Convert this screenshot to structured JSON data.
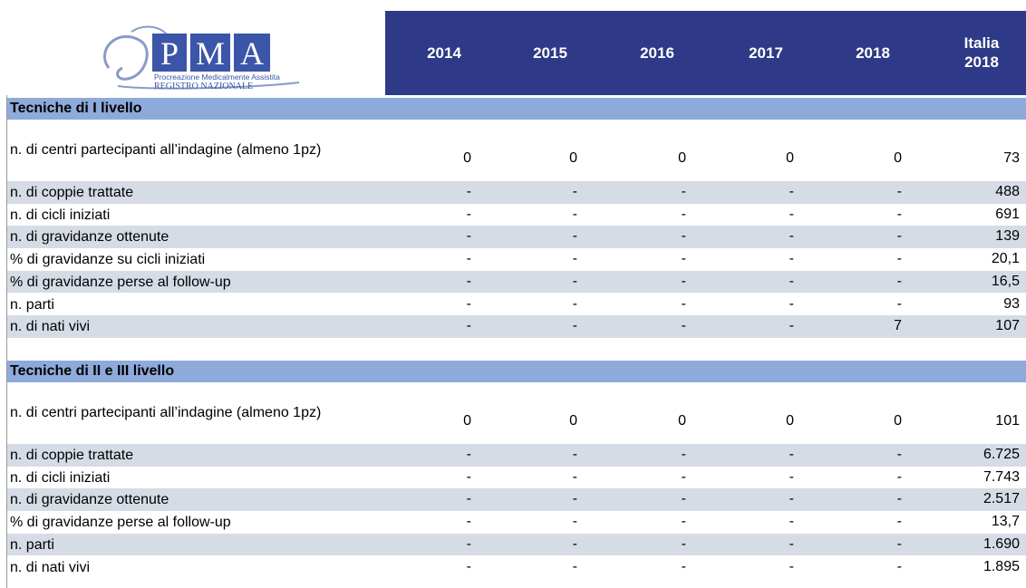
{
  "header": {
    "logo": {
      "title": [
        "P",
        "M",
        "A"
      ],
      "subtitle": "Procreazione Medicalmente Assistita",
      "registry": "REGISTRO NAZIONALE"
    },
    "columns": [
      "2014",
      "2015",
      "2016",
      "2017",
      "2018",
      "Italia 2018"
    ]
  },
  "sections": [
    {
      "title": "Tecniche di I livello",
      "rows": [
        {
          "label": "n. di centri partecipanti all’indagine (almeno 1pz)",
          "values": [
            "0",
            "0",
            "0",
            "0",
            "0",
            "73"
          ]
        },
        {
          "label": "n. di coppie trattate",
          "values": [
            "-",
            "-",
            "-",
            "-",
            "-",
            "488"
          ]
        },
        {
          "label": "n. di cicli iniziati",
          "values": [
            "-",
            "-",
            "-",
            "-",
            "-",
            "691"
          ]
        },
        {
          "label": "n. di gravidanze ottenute",
          "values": [
            "-",
            "-",
            "-",
            "-",
            "-",
            "139"
          ]
        },
        {
          "label": "% di gravidanze su cicli iniziati",
          "values": [
            "-",
            "-",
            "-",
            "-",
            "-",
            "20,1"
          ]
        },
        {
          "label": "% di gravidanze perse al follow-up",
          "values": [
            "-",
            "-",
            "-",
            "-",
            "-",
            "16,5"
          ]
        },
        {
          "label": "n. parti",
          "values": [
            "-",
            "-",
            "-",
            "-",
            "-",
            "93"
          ]
        },
        {
          "label": "n. di nati vivi",
          "values": [
            "-",
            "-",
            "-",
            "-",
            "7",
            "107"
          ]
        }
      ]
    },
    {
      "title": "Tecniche di II e III livello",
      "rows": [
        {
          "label": "n. di centri partecipanti all’indagine (almeno 1pz)",
          "values": [
            "0",
            "0",
            "0",
            "0",
            "0",
            "101"
          ]
        },
        {
          "label": "n. di coppie trattate",
          "values": [
            "-",
            "-",
            "-",
            "-",
            "-",
            "6.725"
          ]
        },
        {
          "label": "n. di cicli iniziati",
          "values": [
            "-",
            "-",
            "-",
            "-",
            "-",
            "7.743"
          ]
        },
        {
          "label": "n. di gravidanze ottenute",
          "values": [
            "-",
            "-",
            "-",
            "-",
            "-",
            "2.517"
          ]
        },
        {
          "label": "% di gravidanze perse al follow-up",
          "values": [
            "-",
            "-",
            "-",
            "-",
            "-",
            "13,7"
          ]
        },
        {
          "label": "n. parti",
          "values": [
            "-",
            "-",
            "-",
            "-",
            "-",
            "1.690"
          ]
        },
        {
          "label": "n. di nati vivi",
          "values": [
            "-",
            "-",
            "-",
            "-",
            "-",
            "1.895"
          ]
        }
      ]
    }
  ]
}
